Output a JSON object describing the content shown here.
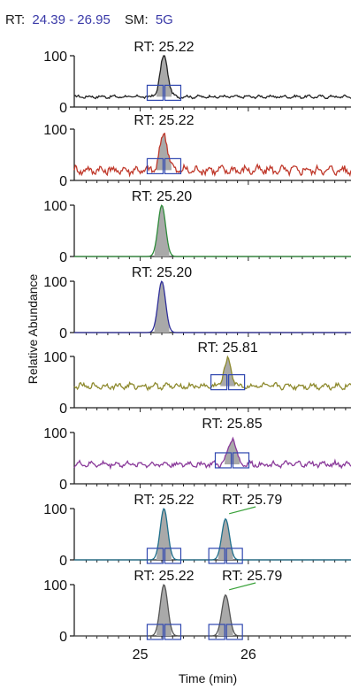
{
  "header": {
    "rt_label": "RT:",
    "rt_range": "24.39 - 26.95",
    "sm_label": "SM:",
    "sm_value": "5G"
  },
  "chart_data": {
    "type": "line",
    "title": "",
    "xlabel": "Time (min)",
    "ylabel": "Relative Abundance",
    "xlim": [
      24.39,
      26.95
    ],
    "ylim": [
      0,
      100
    ],
    "x_ticks": [
      "25",
      "26"
    ],
    "y_ticks": [
      "0",
      "100"
    ],
    "grid": false,
    "series": [
      {
        "label_index": 0,
        "color": "#222222",
        "baseline": 20,
        "noise": 4,
        "peaks": [
          {
            "rt": "RT: 25.22",
            "x": 25.22,
            "height": 100,
            "shaded": true,
            "boxes": true
          }
        ]
      },
      {
        "label_index": 1,
        "color": "#c0392b",
        "baseline": 20,
        "noise": 12,
        "peaks": [
          {
            "rt": "RT: 25.22",
            "x": 25.22,
            "height": 92,
            "shaded": true,
            "boxes": true
          }
        ]
      },
      {
        "label_index": 2,
        "color": "#2e8b3a",
        "baseline": 0,
        "noise": 0,
        "peaks": [
          {
            "rt": "RT: 25.20",
            "x": 25.2,
            "height": 100,
            "shaded": true,
            "boxes": false
          }
        ]
      },
      {
        "label_index": 3,
        "color": "#2f2f9a",
        "baseline": 0,
        "noise": 0,
        "peaks": [
          {
            "rt": "RT: 25.20",
            "x": 25.2,
            "height": 100,
            "shaded": true,
            "boxes": false
          }
        ]
      },
      {
        "label_index": 4,
        "color": "#8e8a2e",
        "baseline": 42,
        "noise": 8,
        "peaks": [
          {
            "rt": "RT: 25.81",
            "x": 25.81,
            "height": 92,
            "shaded": true,
            "boxes": true
          }
        ]
      },
      {
        "label_index": 5,
        "color": "#8a3a9a",
        "baseline": 38,
        "noise": 8,
        "peaks": [
          {
            "rt": "RT: 25.85",
            "x": 25.85,
            "height": 90,
            "shaded": true,
            "boxes": true
          }
        ]
      },
      {
        "label_index": 6,
        "color": "#1f6f8b",
        "baseline": 0,
        "noise": 0,
        "peaks": [
          {
            "rt": "RT: 25.22",
            "x": 25.22,
            "height": 100,
            "shaded": true,
            "boxes": true
          },
          {
            "rt": "RT: 25.79",
            "x": 25.79,
            "height": 80,
            "shaded": true,
            "boxes": true
          }
        ]
      },
      {
        "label_index": 7,
        "color": "#555555",
        "baseline": 0,
        "noise": 0,
        "peaks": [
          {
            "rt": "RT: 25.22",
            "x": 25.22,
            "height": 100,
            "shaded": true,
            "boxes": true
          },
          {
            "rt": "RT: 25.79",
            "x": 25.79,
            "height": 80,
            "shaded": true,
            "boxes": true
          }
        ]
      }
    ]
  }
}
